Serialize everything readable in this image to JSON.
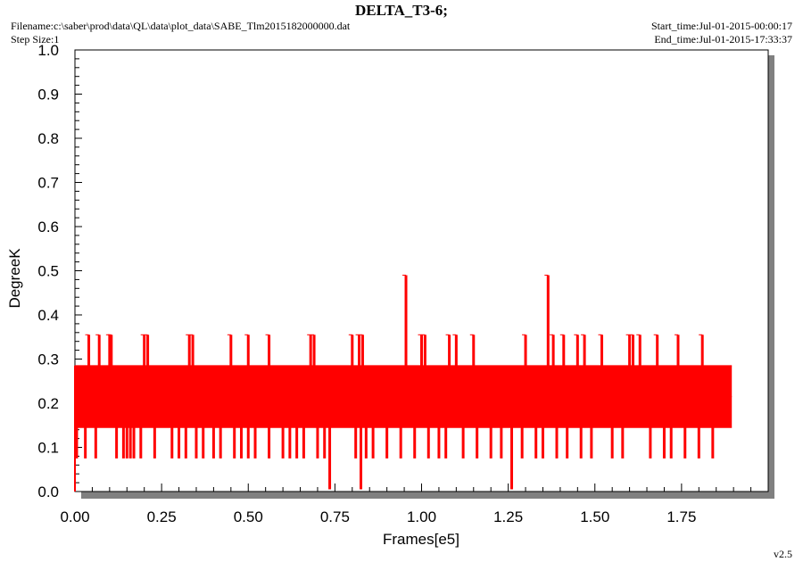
{
  "header": {
    "title": "DELTA_T3-6;",
    "filename": "Filename:c:\\saber\\prod\\data\\QL\\data\\plot_data\\SABE_Tlm2015182000000.dat",
    "step_size": "Step Size:1",
    "start_time": "Start_time:Jul-01-2015-00:00:17",
    "end_time": "End_time:Jul-01-2015-17:33:37",
    "version": "v2.5"
  },
  "chart_data": {
    "type": "line",
    "title": "DELTA_T3-6;",
    "xlabel": "Frames[e5]",
    "ylabel": "DegreeK",
    "xlim": [
      0,
      2.0
    ],
    "ylim": [
      0,
      1.0
    ],
    "x_ticks": [
      "0.00",
      "0.25",
      "0.50",
      "0.75",
      "1.00",
      "1.25",
      "1.50",
      "1.75"
    ],
    "y_ticks": [
      "0.0",
      "0.1",
      "0.2",
      "0.3",
      "0.4",
      "0.5",
      "0.6",
      "0.7",
      "0.8",
      "0.9",
      "1.0"
    ],
    "grid": false,
    "series": [
      {
        "color": "#ff0000",
        "x_range": [
          0.0,
          1.895
        ],
        "band": [
          0.145,
          0.285
        ],
        "main_levels": [
          0.145,
          0.215,
          0.285
        ],
        "upper_spikes": [
          {
            "x": 0.04,
            "y": 0.355
          },
          {
            "x": 0.07,
            "y": 0.355
          },
          {
            "x": 0.1,
            "y": 0.355
          },
          {
            "x": 0.105,
            "y": 0.355
          },
          {
            "x": 0.2,
            "y": 0.355
          },
          {
            "x": 0.21,
            "y": 0.355
          },
          {
            "x": 0.33,
            "y": 0.355
          },
          {
            "x": 0.34,
            "y": 0.355
          },
          {
            "x": 0.45,
            "y": 0.355
          },
          {
            "x": 0.5,
            "y": 0.355
          },
          {
            "x": 0.56,
            "y": 0.355
          },
          {
            "x": 0.68,
            "y": 0.355
          },
          {
            "x": 0.69,
            "y": 0.355
          },
          {
            "x": 0.8,
            "y": 0.355
          },
          {
            "x": 0.82,
            "y": 0.355
          },
          {
            "x": 0.83,
            "y": 0.355
          },
          {
            "x": 0.955,
            "y": 0.49
          },
          {
            "x": 1.0,
            "y": 0.355
          },
          {
            "x": 1.01,
            "y": 0.355
          },
          {
            "x": 1.08,
            "y": 0.355
          },
          {
            "x": 1.1,
            "y": 0.355
          },
          {
            "x": 1.15,
            "y": 0.355
          },
          {
            "x": 1.3,
            "y": 0.355
          },
          {
            "x": 1.365,
            "y": 0.49
          },
          {
            "x": 1.38,
            "y": 0.355
          },
          {
            "x": 1.41,
            "y": 0.355
          },
          {
            "x": 1.45,
            "y": 0.355
          },
          {
            "x": 1.47,
            "y": 0.355
          },
          {
            "x": 1.52,
            "y": 0.355
          },
          {
            "x": 1.6,
            "y": 0.355
          },
          {
            "x": 1.61,
            "y": 0.355
          },
          {
            "x": 1.63,
            "y": 0.355
          },
          {
            "x": 1.68,
            "y": 0.355
          },
          {
            "x": 1.74,
            "y": 0.355
          },
          {
            "x": 1.81,
            "y": 0.355
          }
        ],
        "lower_spikes": [
          {
            "x": 0.005,
            "y": 0.075
          },
          {
            "x": 0.03,
            "y": 0.075
          },
          {
            "x": 0.06,
            "y": 0.075
          },
          {
            "x": 0.12,
            "y": 0.075
          },
          {
            "x": 0.14,
            "y": 0.075
          },
          {
            "x": 0.15,
            "y": 0.075
          },
          {
            "x": 0.16,
            "y": 0.075
          },
          {
            "x": 0.17,
            "y": 0.075
          },
          {
            "x": 0.19,
            "y": 0.075
          },
          {
            "x": 0.23,
            "y": 0.075
          },
          {
            "x": 0.28,
            "y": 0.075
          },
          {
            "x": 0.3,
            "y": 0.075
          },
          {
            "x": 0.32,
            "y": 0.075
          },
          {
            "x": 0.35,
            "y": 0.075
          },
          {
            "x": 0.37,
            "y": 0.075
          },
          {
            "x": 0.4,
            "y": 0.075
          },
          {
            "x": 0.42,
            "y": 0.075
          },
          {
            "x": 0.46,
            "y": 0.075
          },
          {
            "x": 0.48,
            "y": 0.075
          },
          {
            "x": 0.5,
            "y": 0.075
          },
          {
            "x": 0.52,
            "y": 0.075
          },
          {
            "x": 0.56,
            "y": 0.075
          },
          {
            "x": 0.6,
            "y": 0.075
          },
          {
            "x": 0.62,
            "y": 0.075
          },
          {
            "x": 0.64,
            "y": 0.075
          },
          {
            "x": 0.66,
            "y": 0.075
          },
          {
            "x": 0.7,
            "y": 0.075
          },
          {
            "x": 0.72,
            "y": 0.075
          },
          {
            "x": 0.735,
            "y": 0.005
          },
          {
            "x": 0.81,
            "y": 0.075
          },
          {
            "x": 0.825,
            "y": 0.005
          },
          {
            "x": 0.84,
            "y": 0.075
          },
          {
            "x": 0.86,
            "y": 0.075
          },
          {
            "x": 0.9,
            "y": 0.075
          },
          {
            "x": 0.94,
            "y": 0.075
          },
          {
            "x": 0.98,
            "y": 0.075
          },
          {
            "x": 1.02,
            "y": 0.075
          },
          {
            "x": 1.05,
            "y": 0.075
          },
          {
            "x": 1.07,
            "y": 0.075
          },
          {
            "x": 1.12,
            "y": 0.075
          },
          {
            "x": 1.16,
            "y": 0.075
          },
          {
            "x": 1.2,
            "y": 0.075
          },
          {
            "x": 1.23,
            "y": 0.075
          },
          {
            "x": 1.26,
            "y": 0.005
          },
          {
            "x": 1.29,
            "y": 0.075
          },
          {
            "x": 1.33,
            "y": 0.075
          },
          {
            "x": 1.35,
            "y": 0.075
          },
          {
            "x": 1.39,
            "y": 0.075
          },
          {
            "x": 1.42,
            "y": 0.075
          },
          {
            "x": 1.46,
            "y": 0.075
          },
          {
            "x": 1.49,
            "y": 0.075
          },
          {
            "x": 1.55,
            "y": 0.075
          },
          {
            "x": 1.58,
            "y": 0.075
          },
          {
            "x": 1.66,
            "y": 0.075
          },
          {
            "x": 1.7,
            "y": 0.075
          },
          {
            "x": 1.72,
            "y": 0.075
          },
          {
            "x": 1.76,
            "y": 0.075
          },
          {
            "x": 1.8,
            "y": 0.075
          },
          {
            "x": 1.84,
            "y": 0.075
          }
        ]
      }
    ]
  }
}
